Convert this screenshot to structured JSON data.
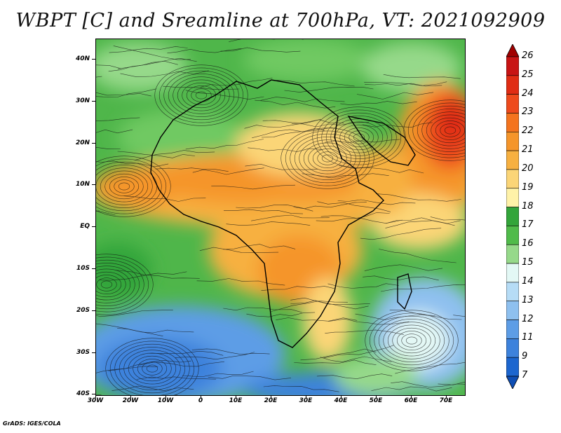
{
  "title": "WBPT [C] and Sreamline at 700hPa, VT: 2021092909",
  "map": {
    "variable": "Wet-bulb potential temperature",
    "units": "C",
    "level": "700hPa",
    "valid_time": "2021092909",
    "lat_range": [
      -40,
      45
    ],
    "lon_range": [
      -30,
      75
    ],
    "lat_ticks": [
      "40N",
      "30N",
      "20N",
      "10N",
      "EQ",
      "10S",
      "20S",
      "30S",
      "40S"
    ],
    "lat_tick_values": [
      40,
      30,
      20,
      10,
      0,
      -10,
      -20,
      -30,
      -40
    ],
    "lon_ticks": [
      "30W",
      "20W",
      "10W",
      "0",
      "10E",
      "20E",
      "30E",
      "40E",
      "50E",
      "60E",
      "70E"
    ],
    "lon_tick_values": [
      -30,
      -20,
      -10,
      0,
      10,
      20,
      30,
      40,
      50,
      60,
      70
    ]
  },
  "colorbar": {
    "labels": [
      "26",
      "25",
      "24",
      "23",
      "22",
      "21",
      "20",
      "19",
      "18",
      "17",
      "16",
      "15",
      "14",
      "13",
      "12",
      "11",
      "9",
      "7"
    ],
    "colors": [
      "#a00000",
      "#c81414",
      "#e02c14",
      "#ee4a1c",
      "#f4741e",
      "#f5952a",
      "#f7b040",
      "#fbd577",
      "#fff2a8",
      "#33a53a",
      "#50bb4a",
      "#96d98a",
      "#e3f8f5",
      "#b6dcf6",
      "#8ec0ef",
      "#5d9de6",
      "#3d82dc",
      "#1c66cf",
      "#0e4eb4"
    ]
  },
  "credit": "GrADS: IGES/COLA"
}
